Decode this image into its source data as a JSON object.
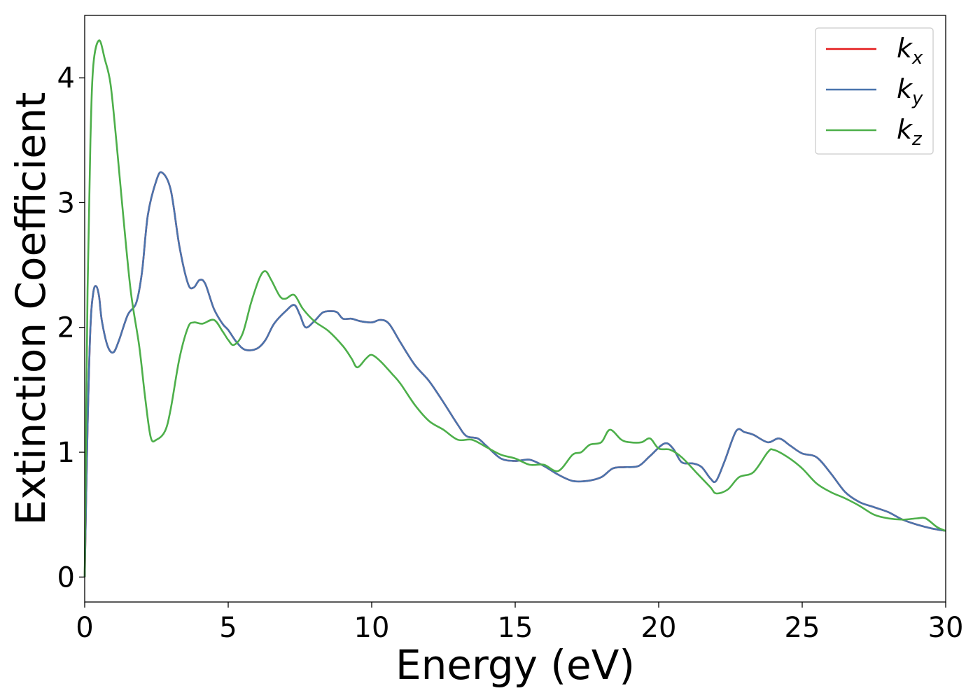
{
  "chart_data": {
    "type": "line",
    "xlabel": "Energy (eV)",
    "ylabel": "Extinction Coefficient",
    "xlim": [
      0,
      30
    ],
    "ylim": [
      -0.2,
      4.5
    ],
    "xticks": [
      0,
      5,
      10,
      15,
      20,
      25,
      30
    ],
    "yticks": [
      0,
      1,
      2,
      3,
      4
    ],
    "grid": false,
    "legend_position": "top-right",
    "series": [
      {
        "name": "k_x",
        "legend_base": "k",
        "legend_sub": "x",
        "color": "#e41a1c",
        "points": [
          [
            0,
            0
          ],
          [
            0.1,
            1.2
          ],
          [
            0.2,
            2.0
          ],
          [
            0.3,
            2.28
          ],
          [
            0.4,
            2.33
          ],
          [
            0.5,
            2.25
          ],
          [
            0.6,
            2.05
          ],
          [
            0.8,
            1.85
          ],
          [
            1.0,
            1.8
          ],
          [
            1.2,
            1.9
          ],
          [
            1.5,
            2.1
          ],
          [
            1.8,
            2.2
          ],
          [
            2.0,
            2.45
          ],
          [
            2.2,
            2.9
          ],
          [
            2.5,
            3.18
          ],
          [
            2.7,
            3.24
          ],
          [
            3.0,
            3.1
          ],
          [
            3.3,
            2.65
          ],
          [
            3.6,
            2.35
          ],
          [
            3.8,
            2.32
          ],
          [
            4.0,
            2.38
          ],
          [
            4.2,
            2.35
          ],
          [
            4.5,
            2.15
          ],
          [
            4.8,
            2.03
          ],
          [
            5.0,
            1.98
          ],
          [
            5.3,
            1.88
          ],
          [
            5.6,
            1.82
          ],
          [
            6.0,
            1.83
          ],
          [
            6.3,
            1.9
          ],
          [
            6.6,
            2.03
          ],
          [
            7.0,
            2.13
          ],
          [
            7.3,
            2.18
          ],
          [
            7.5,
            2.1
          ],
          [
            7.7,
            2.0
          ],
          [
            8.0,
            2.05
          ],
          [
            8.3,
            2.12
          ],
          [
            8.6,
            2.13
          ],
          [
            8.8,
            2.12
          ],
          [
            9.0,
            2.07
          ],
          [
            9.3,
            2.07
          ],
          [
            9.6,
            2.05
          ],
          [
            10.0,
            2.04
          ],
          [
            10.3,
            2.06
          ],
          [
            10.6,
            2.03
          ],
          [
            11.0,
            1.88
          ],
          [
            11.5,
            1.7
          ],
          [
            12.0,
            1.57
          ],
          [
            12.5,
            1.4
          ],
          [
            13.0,
            1.22
          ],
          [
            13.3,
            1.13
          ],
          [
            13.7,
            1.11
          ],
          [
            14.0,
            1.05
          ],
          [
            14.5,
            0.95
          ],
          [
            15.0,
            0.93
          ],
          [
            15.5,
            0.94
          ],
          [
            16.0,
            0.89
          ],
          [
            16.5,
            0.82
          ],
          [
            17.0,
            0.77
          ],
          [
            17.5,
            0.77
          ],
          [
            18.0,
            0.8
          ],
          [
            18.4,
            0.87
          ],
          [
            18.8,
            0.88
          ],
          [
            19.3,
            0.89
          ],
          [
            19.7,
            0.97
          ],
          [
            20.2,
            1.07
          ],
          [
            20.5,
            1.03
          ],
          [
            20.8,
            0.92
          ],
          [
            21.2,
            0.91
          ],
          [
            21.5,
            0.88
          ],
          [
            21.8,
            0.79
          ],
          [
            22.0,
            0.77
          ],
          [
            22.3,
            0.93
          ],
          [
            22.7,
            1.17
          ],
          [
            23.0,
            1.16
          ],
          [
            23.3,
            1.14
          ],
          [
            23.8,
            1.08
          ],
          [
            24.2,
            1.11
          ],
          [
            24.6,
            1.05
          ],
          [
            25.0,
            0.99
          ],
          [
            25.5,
            0.96
          ],
          [
            26.0,
            0.83
          ],
          [
            26.5,
            0.68
          ],
          [
            27.0,
            0.6
          ],
          [
            27.5,
            0.56
          ],
          [
            28.0,
            0.52
          ],
          [
            28.5,
            0.46
          ],
          [
            29.0,
            0.42
          ],
          [
            29.5,
            0.39
          ],
          [
            30.0,
            0.37
          ]
        ]
      },
      {
        "name": "k_y",
        "legend_base": "k",
        "legend_sub": "y",
        "color": "#4a74ad",
        "points": [
          [
            0,
            0
          ],
          [
            0.1,
            1.2
          ],
          [
            0.2,
            2.0
          ],
          [
            0.3,
            2.28
          ],
          [
            0.4,
            2.33
          ],
          [
            0.5,
            2.25
          ],
          [
            0.6,
            2.05
          ],
          [
            0.8,
            1.85
          ],
          [
            1.0,
            1.8
          ],
          [
            1.2,
            1.9
          ],
          [
            1.5,
            2.1
          ],
          [
            1.8,
            2.2
          ],
          [
            2.0,
            2.45
          ],
          [
            2.2,
            2.9
          ],
          [
            2.5,
            3.18
          ],
          [
            2.7,
            3.24
          ],
          [
            3.0,
            3.1
          ],
          [
            3.3,
            2.65
          ],
          [
            3.6,
            2.35
          ],
          [
            3.8,
            2.32
          ],
          [
            4.0,
            2.38
          ],
          [
            4.2,
            2.35
          ],
          [
            4.5,
            2.15
          ],
          [
            4.8,
            2.03
          ],
          [
            5.0,
            1.98
          ],
          [
            5.3,
            1.88
          ],
          [
            5.6,
            1.82
          ],
          [
            6.0,
            1.83
          ],
          [
            6.3,
            1.9
          ],
          [
            6.6,
            2.03
          ],
          [
            7.0,
            2.13
          ],
          [
            7.3,
            2.18
          ],
          [
            7.5,
            2.1
          ],
          [
            7.7,
            2.0
          ],
          [
            8.0,
            2.05
          ],
          [
            8.3,
            2.12
          ],
          [
            8.6,
            2.13
          ],
          [
            8.8,
            2.12
          ],
          [
            9.0,
            2.07
          ],
          [
            9.3,
            2.07
          ],
          [
            9.6,
            2.05
          ],
          [
            10.0,
            2.04
          ],
          [
            10.3,
            2.06
          ],
          [
            10.6,
            2.03
          ],
          [
            11.0,
            1.88
          ],
          [
            11.5,
            1.7
          ],
          [
            12.0,
            1.57
          ],
          [
            12.5,
            1.4
          ],
          [
            13.0,
            1.22
          ],
          [
            13.3,
            1.13
          ],
          [
            13.7,
            1.11
          ],
          [
            14.0,
            1.05
          ],
          [
            14.5,
            0.95
          ],
          [
            15.0,
            0.93
          ],
          [
            15.5,
            0.94
          ],
          [
            16.0,
            0.89
          ],
          [
            16.5,
            0.82
          ],
          [
            17.0,
            0.77
          ],
          [
            17.5,
            0.77
          ],
          [
            18.0,
            0.8
          ],
          [
            18.4,
            0.87
          ],
          [
            18.8,
            0.88
          ],
          [
            19.3,
            0.89
          ],
          [
            19.7,
            0.97
          ],
          [
            20.2,
            1.07
          ],
          [
            20.5,
            1.03
          ],
          [
            20.8,
            0.92
          ],
          [
            21.2,
            0.91
          ],
          [
            21.5,
            0.88
          ],
          [
            21.8,
            0.79
          ],
          [
            22.0,
            0.77
          ],
          [
            22.3,
            0.93
          ],
          [
            22.7,
            1.17
          ],
          [
            23.0,
            1.16
          ],
          [
            23.3,
            1.14
          ],
          [
            23.8,
            1.08
          ],
          [
            24.2,
            1.11
          ],
          [
            24.6,
            1.05
          ],
          [
            25.0,
            0.99
          ],
          [
            25.5,
            0.96
          ],
          [
            26.0,
            0.83
          ],
          [
            26.5,
            0.68
          ],
          [
            27.0,
            0.6
          ],
          [
            27.5,
            0.56
          ],
          [
            28.0,
            0.52
          ],
          [
            28.5,
            0.46
          ],
          [
            29.0,
            0.42
          ],
          [
            29.5,
            0.39
          ],
          [
            30.0,
            0.37
          ]
        ]
      },
      {
        "name": "k_z",
        "legend_base": "k",
        "legend_sub": "z",
        "color": "#4daf4a",
        "points": [
          [
            0,
            0
          ],
          [
            0.1,
            2.3
          ],
          [
            0.2,
            3.5
          ],
          [
            0.3,
            4.1
          ],
          [
            0.5,
            4.3
          ],
          [
            0.7,
            4.15
          ],
          [
            0.9,
            3.95
          ],
          [
            1.1,
            3.5
          ],
          [
            1.3,
            3.0
          ],
          [
            1.6,
            2.3
          ],
          [
            1.9,
            1.85
          ],
          [
            2.1,
            1.45
          ],
          [
            2.3,
            1.12
          ],
          [
            2.5,
            1.1
          ],
          [
            2.8,
            1.17
          ],
          [
            3.0,
            1.35
          ],
          [
            3.3,
            1.75
          ],
          [
            3.6,
            2.0
          ],
          [
            3.8,
            2.04
          ],
          [
            4.1,
            2.03
          ],
          [
            4.5,
            2.06
          ],
          [
            4.8,
            1.97
          ],
          [
            5.0,
            1.9
          ],
          [
            5.2,
            1.86
          ],
          [
            5.5,
            1.95
          ],
          [
            5.8,
            2.2
          ],
          [
            6.1,
            2.4
          ],
          [
            6.3,
            2.45
          ],
          [
            6.5,
            2.38
          ],
          [
            6.8,
            2.25
          ],
          [
            7.0,
            2.23
          ],
          [
            7.3,
            2.26
          ],
          [
            7.6,
            2.15
          ],
          [
            8.0,
            2.05
          ],
          [
            8.5,
            1.97
          ],
          [
            9.0,
            1.85
          ],
          [
            9.3,
            1.75
          ],
          [
            9.5,
            1.68
          ],
          [
            9.8,
            1.75
          ],
          [
            10.0,
            1.78
          ],
          [
            10.3,
            1.73
          ],
          [
            10.7,
            1.63
          ],
          [
            11.0,
            1.55
          ],
          [
            11.5,
            1.38
          ],
          [
            12.0,
            1.25
          ],
          [
            12.5,
            1.18
          ],
          [
            13.0,
            1.1
          ],
          [
            13.5,
            1.1
          ],
          [
            14.0,
            1.04
          ],
          [
            14.5,
            0.98
          ],
          [
            15.0,
            0.95
          ],
          [
            15.5,
            0.9
          ],
          [
            16.0,
            0.9
          ],
          [
            16.5,
            0.85
          ],
          [
            17.0,
            0.98
          ],
          [
            17.3,
            1.0
          ],
          [
            17.6,
            1.06
          ],
          [
            18.0,
            1.08
          ],
          [
            18.3,
            1.18
          ],
          [
            18.7,
            1.1
          ],
          [
            19.0,
            1.08
          ],
          [
            19.4,
            1.08
          ],
          [
            19.7,
            1.11
          ],
          [
            20.0,
            1.03
          ],
          [
            20.4,
            1.02
          ],
          [
            20.8,
            0.96
          ],
          [
            21.3,
            0.84
          ],
          [
            21.8,
            0.72
          ],
          [
            22.0,
            0.67
          ],
          [
            22.4,
            0.7
          ],
          [
            22.8,
            0.8
          ],
          [
            23.3,
            0.84
          ],
          [
            23.8,
            1.0
          ],
          [
            24.0,
            1.02
          ],
          [
            24.5,
            0.96
          ],
          [
            25.0,
            0.87
          ],
          [
            25.5,
            0.75
          ],
          [
            26.0,
            0.68
          ],
          [
            26.5,
            0.63
          ],
          [
            27.0,
            0.57
          ],
          [
            27.5,
            0.5
          ],
          [
            28.0,
            0.47
          ],
          [
            28.5,
            0.46
          ],
          [
            29.0,
            0.47
          ],
          [
            29.3,
            0.47
          ],
          [
            29.7,
            0.4
          ],
          [
            30.0,
            0.37
          ]
        ]
      }
    ]
  }
}
